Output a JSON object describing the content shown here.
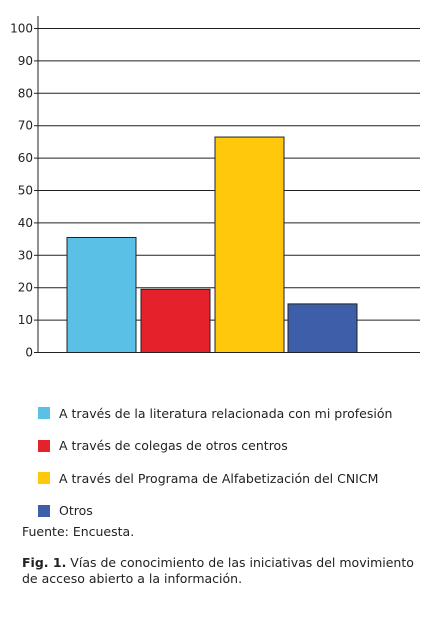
{
  "chart_data": {
    "type": "bar",
    "categories": [
      "A través de la literatura relacionada con mi profesión",
      "A través de colegas de otros centros",
      "A través del Programa de Alfabetización del CNICM",
      "Otros"
    ],
    "values": [
      35.5,
      19.5,
      66.5,
      15
    ],
    "colors": [
      "#5BC0E6",
      "#E5222B",
      "#FFC80B",
      "#3D5EA8"
    ],
    "yticks": [
      0,
      10,
      20,
      30,
      40,
      50,
      60,
      70,
      80,
      90,
      100
    ],
    "ylim": [
      0,
      100
    ],
    "grid": true,
    "legend_position": "bottom"
  },
  "source": "Fuente: Encuesta.",
  "caption": {
    "label": "Fig. 1.",
    "text": " Vías de conocimiento de las iniciativas del movimiento de acceso abierto a la información."
  }
}
